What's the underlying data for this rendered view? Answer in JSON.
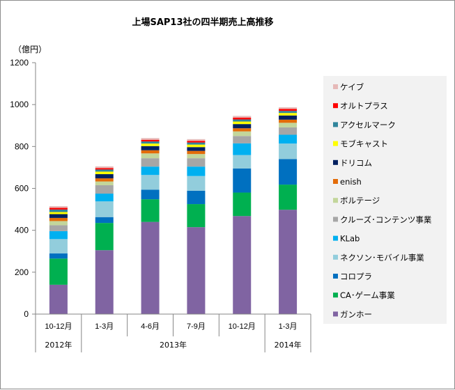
{
  "chart_data": {
    "type": "bar",
    "stacked": true,
    "title": "上場SAP13社の四半期売上高推移",
    "ylabel": "（億円）",
    "xlabel": "",
    "ylim": [
      0,
      1200
    ],
    "yticks": [
      0,
      200,
      400,
      600,
      800,
      1000,
      1200
    ],
    "grid": false,
    "legend_position": "right",
    "categories": [
      "10-12月",
      "1-3月",
      "4-6月",
      "7-9月",
      "10-12月",
      "1-3月"
    ],
    "year_groups": [
      {
        "label": "2012年",
        "span": 1
      },
      {
        "label": "2013年",
        "span": 4
      },
      {
        "label": "2014年",
        "span": 1
      }
    ],
    "series": [
      {
        "name": "ガンホー",
        "color": "#8064a2",
        "values": [
          140,
          305,
          440,
          415,
          468,
          498
        ]
      },
      {
        "name": "CA･ゲーム事業",
        "color": "#00b050",
        "values": [
          125,
          130,
          108,
          110,
          112,
          120
        ]
      },
      {
        "name": "コロプラ",
        "color": "#0070c0",
        "values": [
          25,
          28,
          46,
          64,
          115,
          122
        ]
      },
      {
        "name": "ネクソン･モバイル事業",
        "color": "#92cddc",
        "values": [
          68,
          75,
          70,
          70,
          64,
          74
        ]
      },
      {
        "name": "KLab",
        "color": "#00b0f0",
        "values": [
          38,
          37,
          40,
          45,
          56,
          42
        ]
      },
      {
        "name": "クルーズ･コンテンツ事業",
        "color": "#a6a6a6",
        "values": [
          28,
          40,
          40,
          40,
          35,
          35
        ]
      },
      {
        "name": "ボルテージ",
        "color": "#c3d69b",
        "values": [
          20,
          18,
          23,
          20,
          22,
          22
        ]
      },
      {
        "name": "enish",
        "color": "#e36c09",
        "values": [
          15,
          15,
          15,
          15,
          15,
          15
        ]
      },
      {
        "name": "ドリコム",
        "color": "#002060",
        "values": [
          18,
          20,
          20,
          18,
          20,
          20
        ]
      },
      {
        "name": "モブキャスト",
        "color": "#ffff00",
        "values": [
          10,
          12,
          12,
          12,
          12,
          12
        ]
      },
      {
        "name": "アクセルマーク",
        "color": "#31859c",
        "values": [
          12,
          10,
          10,
          10,
          10,
          10
        ]
      },
      {
        "name": "オルトプラス",
        "color": "#ff0000",
        "values": [
          8,
          7,
          8,
          8,
          9,
          9
        ]
      },
      {
        "name": "ケイブ",
        "color": "#e6b9b8",
        "values": [
          8,
          8,
          8,
          8,
          8,
          8
        ]
      }
    ]
  }
}
